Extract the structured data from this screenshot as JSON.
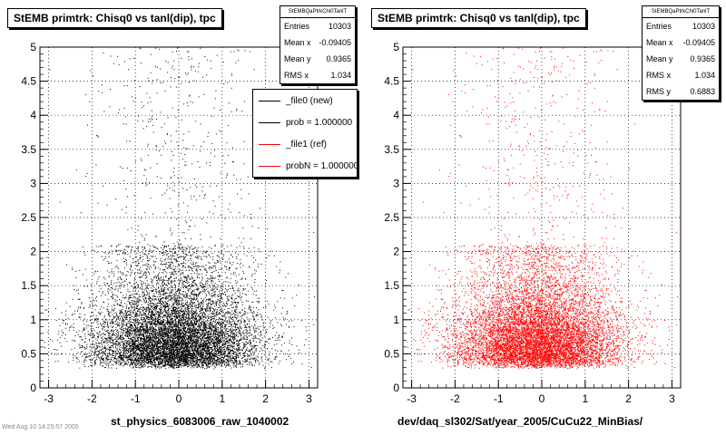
{
  "chart_data": [
    {
      "type": "scatter",
      "title": "StEMB primtrk: Chisq0 vs tanl(dip), tpc",
      "xlabel": "st_physics_6083006_raw_1040002",
      "ylabel": "",
      "xlim": [
        -3.2,
        3.2
      ],
      "ylim": [
        0,
        5
      ],
      "x_ticks": [
        "-3",
        "-2",
        "-1",
        "0",
        "1",
        "2",
        "3"
      ],
      "y_ticks": [
        "0",
        "0.5",
        "1",
        "1.5",
        "2",
        "2.5",
        "3",
        "3.5",
        "4",
        "4.5",
        "5"
      ],
      "grid": true,
      "marker_color": "#000000",
      "n_points": 10303,
      "stats": {
        "name": "StEMBQaPtrkChi0TanlT",
        "rows": [
          {
            "label": "Entries",
            "value": "10303"
          },
          {
            "label": "Mean x",
            "value": "-0.09405"
          },
          {
            "label": "Mean y",
            "value": "0.9365"
          },
          {
            "label": "RMS x",
            "value": "1.034"
          }
        ]
      },
      "legend": [
        {
          "label": "_file0 (new)",
          "color": "#000000"
        },
        {
          "label": "prob = 1.000000",
          "color": "#000000"
        },
        {
          "label": "_file1 (ref)",
          "color": "#ff0000"
        },
        {
          "label": "probN = 1.000000",
          "color": "#ff0000"
        }
      ]
    },
    {
      "type": "scatter",
      "title": "StEMB primtrk: Chisq0 vs tanl(dip), tpc",
      "xlabel": "dev/daq_sl302/Sat/year_2005/CuCu22_MinBias/",
      "ylabel": "",
      "xlim": [
        -3.2,
        3.2
      ],
      "ylim": [
        0,
        5
      ],
      "x_ticks": [
        "-3",
        "-2",
        "-1",
        "0",
        "1",
        "2",
        "3"
      ],
      "y_ticks": [
        "0",
        "0.5",
        "1",
        "1.5",
        "2",
        "2.5",
        "3",
        "3.5",
        "4",
        "4.5",
        "5"
      ],
      "grid": true,
      "marker_color": "#ff0000",
      "n_points": 10303,
      "stats": {
        "name": "StEMBQaPtrkChi0TanlT",
        "rows": [
          {
            "label": "Entries",
            "value": "10303"
          },
          {
            "label": "Mean x",
            "value": "-0.09405"
          },
          {
            "label": "Mean y",
            "value": "0.9365"
          },
          {
            "label": "RMS x",
            "value": "1.034"
          },
          {
            "label": "RMS y",
            "value": "0.6883"
          }
        ]
      }
    }
  ],
  "footer": "Wed Aug 10 14:25:57 2005"
}
